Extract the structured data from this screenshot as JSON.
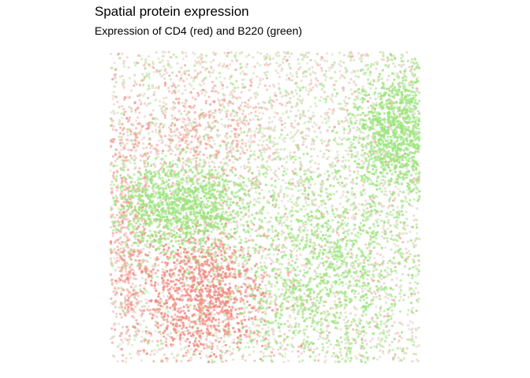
{
  "chart_data": {
    "type": "scatter",
    "title": "Spatial protein expression",
    "subtitle": "Expression of CD4 (red) and B220 (green)",
    "xlabel": "",
    "ylabel": "",
    "grid": false,
    "axes_visible": false,
    "xlim": [
      0,
      1
    ],
    "ylim": [
      0,
      1
    ],
    "point_count_approx": 9000,
    "series": [
      {
        "color": "#f28b82",
        "regions": [
          {
            "cx": 0.3,
            "cy": 0.22,
            "sx": 0.11,
            "sy": 0.11,
            "density": "high"
          },
          {
            "cx": 0.25,
            "cy": 0.75,
            "sx": 0.15,
            "sy": 0.1,
            "density": "low"
          },
          {
            "cx": 0.05,
            "cy": 0.4,
            "sx": 0.04,
            "sy": 0.2,
            "density": "low"
          }
        ]
      },
      {
        "color": "#9be57d",
        "regions": [
          {
            "cx": 0.22,
            "cy": 0.5,
            "sx": 0.12,
            "sy": 0.07,
            "density": "high"
          },
          {
            "cx": 0.72,
            "cy": 0.28,
            "sx": 0.16,
            "sy": 0.18,
            "density": "high"
          },
          {
            "cx": 0.93,
            "cy": 0.75,
            "sx": 0.07,
            "sy": 0.1,
            "density": "high"
          },
          {
            "cx": 0.5,
            "cy": 0.55,
            "sx": 0.25,
            "sy": 0.25,
            "density": "low"
          }
        ]
      }
    ],
    "background_color": "#e4d6c8"
  }
}
